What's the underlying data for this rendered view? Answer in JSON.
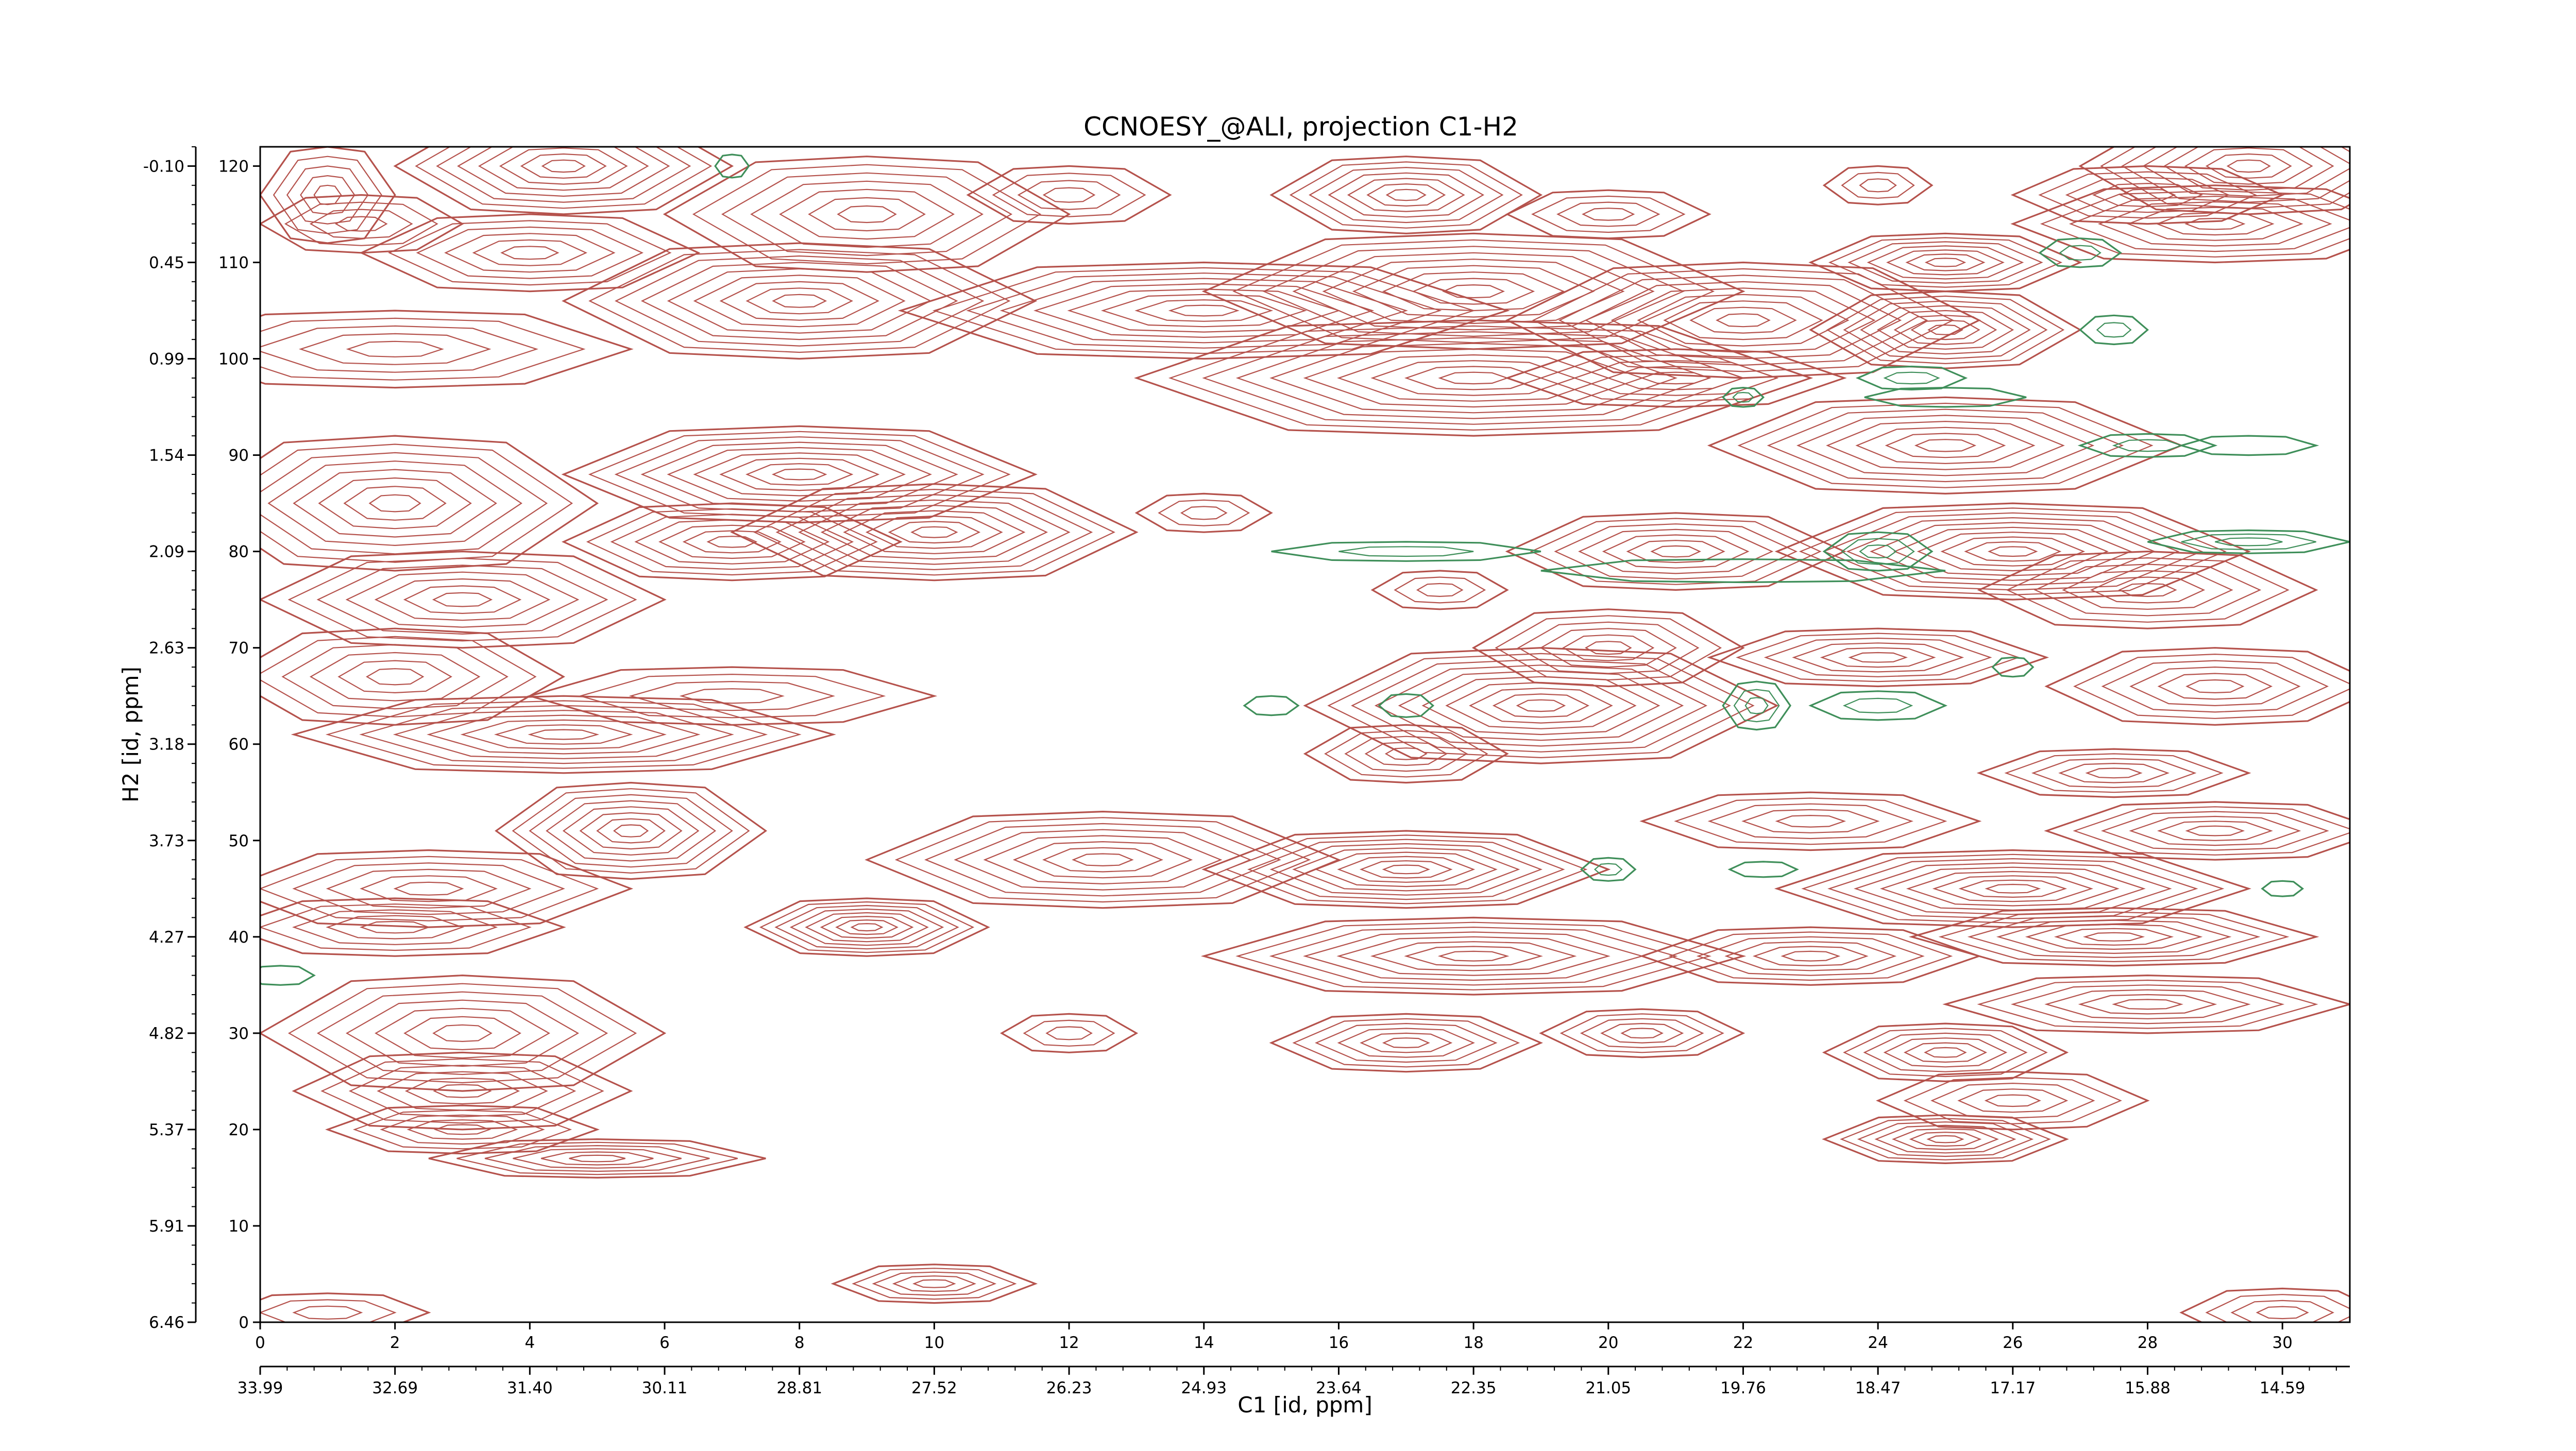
{
  "chart_data": {
    "type": "contour",
    "title": "CCNOESY_@ALI, projection C1-H2",
    "xlabel": "C1 [id, ppm]",
    "ylabel": "H2 [id, ppm]",
    "xlim": [
      0,
      31
    ],
    "ylim": [
      0,
      122
    ],
    "grid": false,
    "x_index_ticks": [
      "0",
      "2",
      "4",
      "6",
      "8",
      "10",
      "12",
      "14",
      "16",
      "18",
      "20",
      "22",
      "24",
      "26",
      "28",
      "30"
    ],
    "x_ppm_ticks": [
      "33.99",
      "32.69",
      "31.40",
      "30.11",
      "28.81",
      "27.52",
      "26.23",
      "24.93",
      "23.64",
      "22.35",
      "21.05",
      "19.76",
      "18.47",
      "17.17",
      "15.88",
      "14.59"
    ],
    "y_index_ticks": [
      "0",
      "10",
      "20",
      "30",
      "40",
      "50",
      "60",
      "70",
      "80",
      "90",
      "100",
      "110",
      "120"
    ],
    "y_ppm_ticks": [
      "6.46",
      "5.91",
      "5.37",
      "4.82",
      "4.27",
      "3.73",
      "3.18",
      "2.63",
      "2.09",
      "1.54",
      "0.99",
      "0.45",
      "-0.10"
    ],
    "colors": {
      "positive": "#b5524c",
      "negative": "#3f8f5a"
    },
    "positive_peaks": [
      {
        "x": 1,
        "y": 117,
        "rx": 1.0,
        "ry": 5,
        "n": 5
      },
      {
        "x": 4.5,
        "y": 120,
        "rx": 2.5,
        "ry": 5,
        "n": 8
      },
      {
        "x": 1.5,
        "y": 114,
        "rx": 1.5,
        "ry": 3,
        "n": 4
      },
      {
        "x": 4,
        "y": 111,
        "rx": 2.5,
        "ry": 4,
        "n": 6
      },
      {
        "x": 9,
        "y": 115,
        "rx": 3.0,
        "ry": 6,
        "n": 7
      },
      {
        "x": 12,
        "y": 117,
        "rx": 1.5,
        "ry": 3,
        "n": 4
      },
      {
        "x": 8,
        "y": 106,
        "rx": 3.5,
        "ry": 6,
        "n": 9
      },
      {
        "x": 14,
        "y": 105,
        "rx": 4.5,
        "ry": 5,
        "n": 9
      },
      {
        "x": 17,
        "y": 117,
        "rx": 2.0,
        "ry": 4,
        "n": 7
      },
      {
        "x": 20,
        "y": 115,
        "rx": 1.5,
        "ry": 2.5,
        "n": 4
      },
      {
        "x": 18,
        "y": 107,
        "rx": 4.0,
        "ry": 6,
        "n": 9
      },
      {
        "x": 22,
        "y": 104,
        "rx": 3.5,
        "ry": 6,
        "n": 9
      },
      {
        "x": 25,
        "y": 103,
        "rx": 2.0,
        "ry": 4,
        "n": 8
      },
      {
        "x": 25,
        "y": 110,
        "rx": 2.0,
        "ry": 3,
        "n": 7
      },
      {
        "x": 29,
        "y": 114,
        "rx": 3.0,
        "ry": 4,
        "n": 7
      },
      {
        "x": 29.5,
        "y": 120,
        "rx": 2.5,
        "ry": 5,
        "n": 8
      },
      {
        "x": 28,
        "y": 117,
        "rx": 2.0,
        "ry": 3,
        "n": 5
      },
      {
        "x": 24,
        "y": 118,
        "rx": 0.8,
        "ry": 2,
        "n": 3
      },
      {
        "x": 18,
        "y": 98,
        "rx": 5.0,
        "ry": 6,
        "n": 10
      },
      {
        "x": 21,
        "y": 98,
        "rx": 2.5,
        "ry": 3,
        "n": 5
      },
      {
        "x": 25,
        "y": 91,
        "rx": 3.5,
        "ry": 5,
        "n": 8
      },
      {
        "x": 2,
        "y": 101,
        "rx": 3.5,
        "ry": 4,
        "n": 5
      },
      {
        "x": 8,
        "y": 88,
        "rx": 3.5,
        "ry": 5,
        "n": 9
      },
      {
        "x": 2,
        "y": 85,
        "rx": 3.0,
        "ry": 7,
        "n": 8
      },
      {
        "x": 3,
        "y": 75,
        "rx": 3.0,
        "ry": 5,
        "n": 7
      },
      {
        "x": 10,
        "y": 82,
        "rx": 3.0,
        "ry": 5,
        "n": 9
      },
      {
        "x": 7,
        "y": 81,
        "rx": 2.5,
        "ry": 4,
        "n": 7
      },
      {
        "x": 14,
        "y": 84,
        "rx": 1.0,
        "ry": 2,
        "n": 3
      },
      {
        "x": 21,
        "y": 80,
        "rx": 2.5,
        "ry": 4,
        "n": 7
      },
      {
        "x": 26,
        "y": 80,
        "rx": 3.5,
        "ry": 5,
        "n": 10
      },
      {
        "x": 28,
        "y": 76,
        "rx": 2.5,
        "ry": 4,
        "n": 6
      },
      {
        "x": 17.5,
        "y": 76,
        "rx": 1.0,
        "ry": 2,
        "n": 3
      },
      {
        "x": 20,
        "y": 70,
        "rx": 2.0,
        "ry": 4,
        "n": 6
      },
      {
        "x": 24,
        "y": 69,
        "rx": 2.5,
        "ry": 3,
        "n": 6
      },
      {
        "x": 19,
        "y": 64,
        "rx": 3.5,
        "ry": 6,
        "n": 10
      },
      {
        "x": 17,
        "y": 59,
        "rx": 1.5,
        "ry": 3,
        "n": 5
      },
      {
        "x": 4.5,
        "y": 61,
        "rx": 4.0,
        "ry": 4,
        "n": 8
      },
      {
        "x": 2,
        "y": 67,
        "rx": 2.5,
        "ry": 5,
        "n": 6
      },
      {
        "x": 7,
        "y": 65,
        "rx": 3.0,
        "ry": 3,
        "n": 4
      },
      {
        "x": 29,
        "y": 66,
        "rx": 2.5,
        "ry": 4,
        "n": 6
      },
      {
        "x": 5.5,
        "y": 51,
        "rx": 2.0,
        "ry": 5,
        "n": 8
      },
      {
        "x": 12.5,
        "y": 48,
        "rx": 3.5,
        "ry": 5,
        "n": 8
      },
      {
        "x": 17,
        "y": 47,
        "rx": 3.0,
        "ry": 4,
        "n": 9
      },
      {
        "x": 23,
        "y": 52,
        "rx": 2.5,
        "ry": 3,
        "n": 5
      },
      {
        "x": 26,
        "y": 45,
        "rx": 3.5,
        "ry": 4,
        "n": 9
      },
      {
        "x": 29,
        "y": 51,
        "rx": 2.5,
        "ry": 3,
        "n": 6
      },
      {
        "x": 27.5,
        "y": 57,
        "rx": 2.0,
        "ry": 2.5,
        "n": 5
      },
      {
        "x": 2.5,
        "y": 45,
        "rx": 3.0,
        "ry": 4,
        "n": 6
      },
      {
        "x": 9,
        "y": 41,
        "rx": 1.8,
        "ry": 3,
        "n": 8
      },
      {
        "x": 2,
        "y": 41,
        "rx": 2.5,
        "ry": 3,
        "n": 5
      },
      {
        "x": 18,
        "y": 38,
        "rx": 4.0,
        "ry": 4,
        "n": 8
      },
      {
        "x": 23,
        "y": 38,
        "rx": 2.5,
        "ry": 3,
        "n": 6
      },
      {
        "x": 27.5,
        "y": 40,
        "rx": 3.0,
        "ry": 3,
        "n": 7
      },
      {
        "x": 28,
        "y": 33,
        "rx": 3.0,
        "ry": 3,
        "n": 6
      },
      {
        "x": 3,
        "y": 30,
        "rx": 3.0,
        "ry": 6,
        "n": 7
      },
      {
        "x": 3,
        "y": 24,
        "rx": 2.5,
        "ry": 4,
        "n": 6
      },
      {
        "x": 17,
        "y": 29,
        "rx": 2.0,
        "ry": 3,
        "n": 6
      },
      {
        "x": 20.5,
        "y": 30,
        "rx": 1.5,
        "ry": 2.5,
        "n": 5
      },
      {
        "x": 12,
        "y": 30,
        "rx": 1.0,
        "ry": 2,
        "n": 3
      },
      {
        "x": 25,
        "y": 28,
        "rx": 1.8,
        "ry": 3,
        "n": 6
      },
      {
        "x": 26,
        "y": 23,
        "rx": 2.0,
        "ry": 3,
        "n": 5
      },
      {
        "x": 25,
        "y": 19,
        "rx": 1.8,
        "ry": 2.5,
        "n": 7
      },
      {
        "x": 3,
        "y": 20,
        "rx": 2.0,
        "ry": 2.5,
        "n": 5
      },
      {
        "x": 5,
        "y": 17,
        "rx": 2.5,
        "ry": 2,
        "n": 6
      },
      {
        "x": 10,
        "y": 4,
        "rx": 1.5,
        "ry": 2,
        "n": 5
      },
      {
        "x": 1,
        "y": 1,
        "rx": 1.5,
        "ry": 2,
        "n": 3
      },
      {
        "x": 30,
        "y": 1,
        "rx": 1.5,
        "ry": 2.5,
        "n": 4
      }
    ],
    "negative_peaks": [
      {
        "x": 7,
        "y": 120,
        "rx": 0.25,
        "ry": 1.2,
        "n": 1
      },
      {
        "x": 27,
        "y": 111,
        "rx": 0.6,
        "ry": 1.5,
        "n": 2
      },
      {
        "x": 27.5,
        "y": 103,
        "rx": 0.5,
        "ry": 1.5,
        "n": 2
      },
      {
        "x": 24.5,
        "y": 98,
        "rx": 0.8,
        "ry": 1.2,
        "n": 2
      },
      {
        "x": 25,
        "y": 96,
        "rx": 1.2,
        "ry": 1.0,
        "n": 1
      },
      {
        "x": 22,
        "y": 96,
        "rx": 0.3,
        "ry": 1.0,
        "n": 2
      },
      {
        "x": 28,
        "y": 91,
        "rx": 1.0,
        "ry": 1.2,
        "n": 2
      },
      {
        "x": 29.5,
        "y": 91,
        "rx": 1.0,
        "ry": 1.0,
        "n": 1
      },
      {
        "x": 29.5,
        "y": 81,
        "rx": 1.5,
        "ry": 1.2,
        "n": 3
      },
      {
        "x": 24,
        "y": 80,
        "rx": 0.8,
        "ry": 2,
        "n": 3
      },
      {
        "x": 17,
        "y": 80,
        "rx": 2.0,
        "ry": 1.0,
        "n": 2
      },
      {
        "x": 22,
        "y": 78,
        "rx": 3.0,
        "ry": 1.2,
        "n": 1
      },
      {
        "x": 26,
        "y": 68,
        "rx": 0.3,
        "ry": 1.0,
        "n": 1
      },
      {
        "x": 15,
        "y": 64,
        "rx": 0.4,
        "ry": 1.0,
        "n": 1
      },
      {
        "x": 17,
        "y": 64,
        "rx": 0.4,
        "ry": 1.2,
        "n": 1
      },
      {
        "x": 22.2,
        "y": 64,
        "rx": 0.5,
        "ry": 2.5,
        "n": 3
      },
      {
        "x": 24,
        "y": 64,
        "rx": 1.0,
        "ry": 1.5,
        "n": 2
      },
      {
        "x": 20,
        "y": 47,
        "rx": 0.4,
        "ry": 1.2,
        "n": 2
      },
      {
        "x": 22.3,
        "y": 47,
        "rx": 0.5,
        "ry": 0.8,
        "n": 1
      },
      {
        "x": 0.3,
        "y": 36,
        "rx": 0.5,
        "ry": 1.0,
        "n": 1
      },
      {
        "x": 30,
        "y": 45,
        "rx": 0.3,
        "ry": 0.8,
        "n": 1
      }
    ]
  }
}
